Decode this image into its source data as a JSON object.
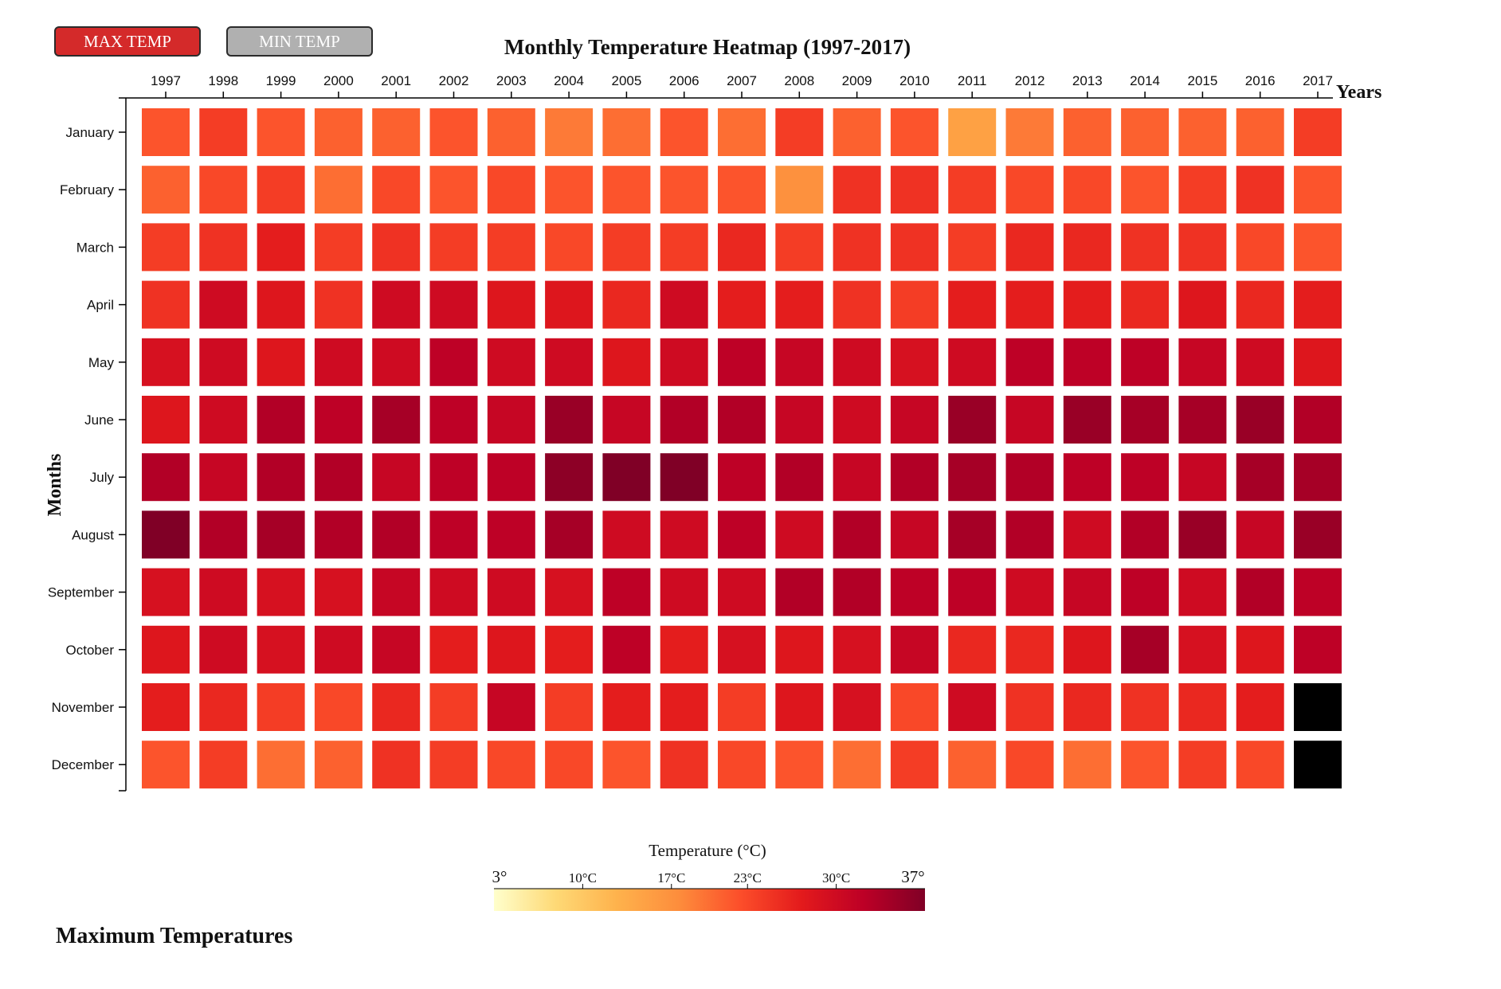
{
  "buttons": {
    "max_label": "MAX TEMP",
    "min_label": "MIN TEMP"
  },
  "subtitle": "Maximum Temperatures",
  "colors": {
    "active_button": "#d42a2a",
    "inactive_button": "#b0b0b0",
    "missing_cell": "#000000",
    "scale": [
      "#ffffcc",
      "#fed976",
      "#feb24c",
      "#fd8d3c",
      "#fc4e2a",
      "#e31a1c",
      "#bd0026",
      "#800026"
    ]
  },
  "chart_data": {
    "type": "heatmap",
    "title": "Monthly Temperature Heatmap (1997-2017)",
    "xlabel": "Years",
    "ylabel": "Months",
    "x": [
      "1997",
      "1998",
      "1999",
      "2000",
      "2001",
      "2002",
      "2003",
      "2004",
      "2005",
      "2006",
      "2007",
      "2008",
      "2009",
      "2010",
      "2011",
      "2012",
      "2013",
      "2014",
      "2015",
      "2016",
      "2017"
    ],
    "y": [
      "January",
      "February",
      "March",
      "April",
      "May",
      "June",
      "July",
      "August",
      "September",
      "October",
      "November",
      "December"
    ],
    "values": [
      [
        22,
        24,
        22,
        21,
        21,
        22,
        21,
        19,
        20,
        22,
        20,
        24,
        21,
        22,
        15,
        19,
        21,
        21,
        21,
        21,
        24
      ],
      [
        21,
        23,
        24,
        20,
        23,
        22,
        23,
        22,
        22,
        22,
        22,
        17,
        25,
        25,
        24,
        23,
        23,
        22,
        24,
        25,
        22
      ],
      [
        24,
        25,
        27,
        24,
        25,
        24,
        24,
        23,
        24,
        24,
        26,
        24,
        25,
        25,
        24,
        26,
        26,
        25,
        25,
        23,
        22
      ],
      [
        25,
        30,
        28,
        25,
        30,
        30,
        28,
        28,
        26,
        30,
        27,
        27,
        25,
        24,
        27,
        27,
        27,
        26,
        28,
        26,
        27
      ],
      [
        29,
        30,
        28,
        30,
        30,
        32,
        30,
        30,
        28,
        30,
        32,
        31,
        30,
        29,
        30,
        32,
        32,
        32,
        31,
        30,
        28
      ],
      [
        28,
        30,
        33,
        32,
        34,
        32,
        31,
        35,
        31,
        33,
        33,
        31,
        30,
        31,
        35,
        31,
        35,
        34,
        34,
        35,
        33
      ],
      [
        33,
        31,
        33,
        33,
        31,
        32,
        32,
        36,
        37,
        37,
        32,
        33,
        31,
        33,
        34,
        33,
        32,
        32,
        31,
        34,
        34
      ],
      [
        37,
        33,
        34,
        33,
        33,
        32,
        32,
        34,
        30,
        30,
        32,
        30,
        33,
        31,
        34,
        33,
        30,
        33,
        35,
        31,
        35
      ],
      [
        29,
        30,
        29,
        29,
        31,
        30,
        30,
        29,
        32,
        30,
        30,
        33,
        33,
        32,
        32,
        30,
        31,
        32,
        30,
        33,
        32
      ],
      [
        28,
        30,
        29,
        30,
        31,
        27,
        28,
        27,
        32,
        27,
        29,
        28,
        29,
        31,
        26,
        26,
        28,
        34,
        29,
        28,
        32
      ],
      [
        27,
        26,
        24,
        23,
        26,
        24,
        31,
        24,
        27,
        27,
        24,
        28,
        29,
        23,
        30,
        25,
        26,
        25,
        26,
        27,
        null
      ],
      [
        22,
        24,
        20,
        21,
        25,
        24,
        23,
        23,
        22,
        25,
        23,
        22,
        20,
        24,
        21,
        23,
        20,
        22,
        24,
        23,
        null
      ]
    ],
    "legend": {
      "title": "Temperature (°C)",
      "min": 3,
      "max": 37,
      "min_label": "3°",
      "max_label": "37°",
      "ticks": [
        10,
        17,
        23,
        30
      ],
      "tick_labels": [
        "10°C",
        "17°C",
        "23°C",
        "30°C"
      ]
    }
  }
}
